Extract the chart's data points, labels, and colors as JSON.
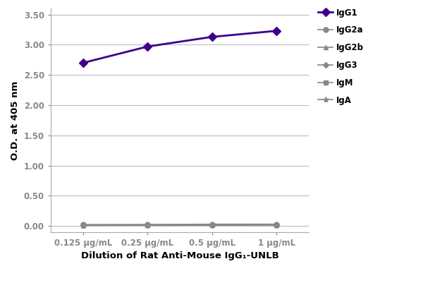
{
  "x_labels": [
    "0.125 μg/mL",
    "0.25 μg/mL",
    "0.5 μg/mL",
    "1 μg/mL"
  ],
  "x_positions": [
    0,
    1,
    2,
    3
  ],
  "series": [
    {
      "label": "IgG1",
      "values": [
        2.7,
        2.97,
        3.13,
        3.23
      ],
      "color": "#3d008a",
      "marker": "D",
      "linewidth": 2.0,
      "markersize": 6,
      "zorder": 5
    },
    {
      "label": "IgG2a",
      "values": [
        0.025,
        0.025,
        0.03,
        0.03
      ],
      "color": "#888888",
      "marker": "o",
      "linewidth": 1.2,
      "markersize": 5,
      "zorder": 4
    },
    {
      "label": "IgG2b",
      "values": [
        0.015,
        0.02,
        0.022,
        0.022
      ],
      "color": "#888888",
      "marker": "^",
      "linewidth": 1.2,
      "markersize": 5,
      "zorder": 3
    },
    {
      "label": "IgG3",
      "values": [
        0.012,
        0.015,
        0.018,
        0.02
      ],
      "color": "#888888",
      "marker": "D",
      "linewidth": 1.2,
      "markersize": 4,
      "zorder": 2
    },
    {
      "label": "IgM",
      "values": [
        0.01,
        0.018,
        0.018,
        0.02
      ],
      "color": "#888888",
      "marker": "s",
      "linewidth": 1.2,
      "markersize": 5,
      "zorder": 1
    },
    {
      "label": "IgA",
      "values": [
        0.008,
        0.012,
        0.015,
        0.018
      ],
      "color": "#888888",
      "marker": "*",
      "linewidth": 1.2,
      "markersize": 6,
      "zorder": 0
    }
  ],
  "ylabel": "O.D. at 405 nm",
  "xlabel": "Dilution of Rat Anti-Mouse IgG₁-UNLB",
  "ylim": [
    -0.1,
    3.6
  ],
  "yticks": [
    0.0,
    0.5,
    1.0,
    1.5,
    2.0,
    2.5,
    3.0,
    3.5
  ],
  "background_color": "#ffffff",
  "grid_color": "#bbbbbb",
  "legend_fontsize": 8.5,
  "axis_fontsize": 9.5,
  "tick_fontsize": 8.5,
  "xlabel_fontsize": 9.5
}
